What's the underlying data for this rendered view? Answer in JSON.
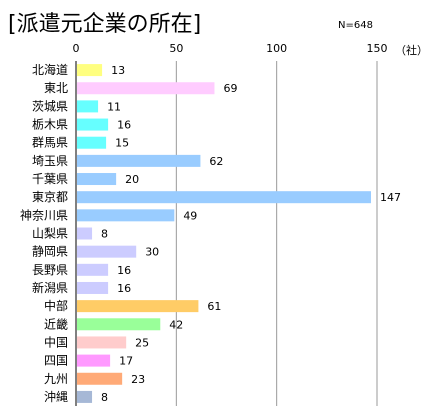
{
  "chart_data": {
    "type": "bar",
    "orientation": "horizontal",
    "title": "[派遣元企業の所在]",
    "n_label": "N=648",
    "unit_label": "（社）",
    "xlim": [
      0,
      150
    ],
    "ticks": [
      0,
      50,
      100,
      150
    ],
    "grid": true,
    "categories": [
      "北海道",
      "東北",
      "茨城県",
      "栃木県",
      "群馬県",
      "埼玉県",
      "千葉県",
      "東京都",
      "神奈川県",
      "山梨県",
      "静岡県",
      "長野県",
      "新潟県",
      "中部",
      "近畿",
      "中国",
      "四国",
      "九州",
      "沖縄"
    ],
    "values": [
      13,
      69,
      11,
      16,
      15,
      62,
      20,
      147,
      49,
      8,
      30,
      16,
      16,
      61,
      42,
      25,
      17,
      23,
      8
    ],
    "colors": [
      "#ffff80",
      "#ffccff",
      "#66ffff",
      "#66ffff",
      "#66ffff",
      "#99ccff",
      "#99ccff",
      "#99ccff",
      "#99ccff",
      "#ccccff",
      "#ccccff",
      "#ccccff",
      "#ccccff",
      "#ffcc66",
      "#99ff99",
      "#ffcccc",
      "#ff99ff",
      "#ffaa77",
      "#a6b8d6"
    ]
  }
}
